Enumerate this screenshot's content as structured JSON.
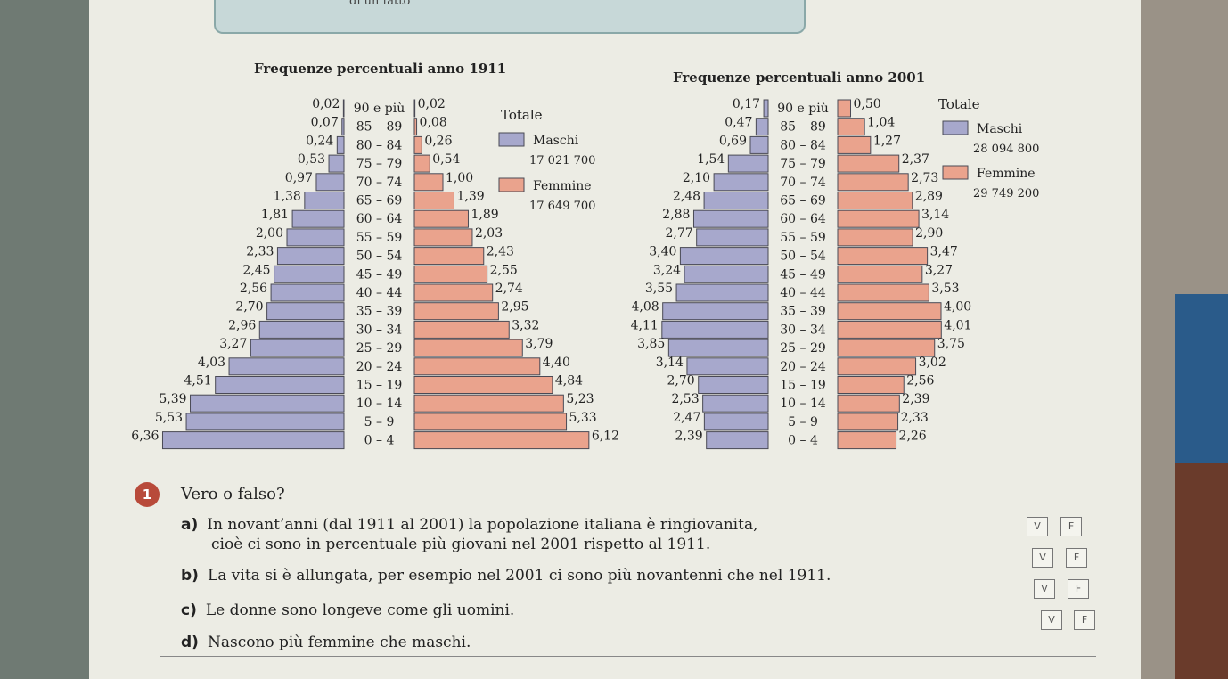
{
  "header": {
    "label": "di un fatto"
  },
  "colors": {
    "male": "#a7a8cc",
    "female": "#eaa38d",
    "edge": "#4a4a55"
  },
  "chart_data": [
    {
      "type": "bar",
      "title": "Frequenze percentuali anno 1911",
      "orientation": "population-pyramid",
      "categories": [
        "90 e più",
        "85 - 89",
        "80 - 84",
        "75 - 79",
        "70 - 74",
        "65 - 69",
        "60 - 64",
        "55 - 59",
        "50 - 54",
        "45 - 49",
        "40 - 44",
        "35 - 39",
        "30 - 34",
        "25 - 29",
        "20 - 24",
        "15 - 19",
        "10 - 14",
        "5 - 9",
        "0 - 4"
      ],
      "category_labels": [
        "90 e più",
        "85 – 89",
        "80 – 84",
        "75 – 79",
        "70 – 74",
        "65 – 69",
        "60 – 64",
        "55 – 59",
        "50 – 54",
        "45 – 49",
        "40 – 44",
        "35 – 39",
        "30 – 34",
        "25 – 29",
        "20 – 24",
        "15 – 19",
        "10 – 14",
        "5 – 9",
        "0 – 4"
      ],
      "series": [
        {
          "name": "Maschi",
          "values": [
            0.02,
            0.07,
            0.24,
            0.53,
            0.97,
            1.38,
            1.81,
            2.0,
            2.33,
            2.45,
            2.56,
            2.7,
            2.96,
            3.27,
            4.03,
            4.51,
            5.39,
            5.53,
            6.36
          ]
        },
        {
          "name": "Femmine",
          "values": [
            0.02,
            0.08,
            0.26,
            0.54,
            1.0,
            1.39,
            1.89,
            2.03,
            2.43,
            2.55,
            2.74,
            2.95,
            3.32,
            3.79,
            4.4,
            4.84,
            5.23,
            5.33,
            6.12
          ]
        }
      ],
      "labels_male": [
        "0,02",
        "0,07",
        "0,24",
        "0,53",
        "0,97",
        "1,38",
        "1,81",
        "2,00",
        "2,33",
        "2,45",
        "2,56",
        "2,70",
        "2,96",
        "3,27",
        "4,03",
        "4,51",
        "5,39",
        "5,53",
        "6,36"
      ],
      "labels_female": [
        "0,02",
        "0,08",
        "0,26",
        "0,54",
        "1,00",
        "1,39",
        "1,89",
        "2,03",
        "2,43",
        "2,55",
        "2,74",
        "2,95",
        "3,32",
        "3,79",
        "4,40",
        "4,84",
        "5,23",
        "5,33",
        "6,12"
      ],
      "legend": {
        "title": "Totale",
        "male_label": "Maschi",
        "male_total": "17 021 700",
        "female_label": "Femmine",
        "female_total": "17 649 700"
      }
    },
    {
      "type": "bar",
      "title": "Frequenze percentuali anno 2001",
      "orientation": "population-pyramid",
      "categories": [
        "90 e più",
        "85 - 89",
        "80 - 84",
        "75 - 79",
        "70 - 74",
        "65 - 69",
        "60 - 64",
        "55 - 59",
        "50 - 54",
        "45 - 49",
        "40 - 44",
        "35 - 39",
        "30 - 34",
        "25 - 29",
        "20 - 24",
        "15 - 19",
        "10 - 14",
        "5 - 9",
        "0 - 4"
      ],
      "category_labels": [
        "90 e più",
        "85 – 89",
        "80 – 84",
        "75 – 79",
        "70 – 74",
        "65 – 69",
        "60 – 64",
        "55 – 59",
        "50 – 54",
        "45 – 49",
        "40 – 44",
        "35 – 39",
        "30 – 34",
        "25 – 29",
        "20 – 24",
        "15 – 19",
        "10 – 14",
        "5 – 9",
        "0 – 4"
      ],
      "series": [
        {
          "name": "Maschi",
          "values": [
            0.17,
            0.47,
            0.69,
            1.54,
            2.1,
            2.48,
            2.88,
            2.77,
            3.4,
            3.24,
            3.55,
            4.08,
            4.11,
            3.85,
            3.14,
            2.7,
            2.53,
            2.47,
            2.39
          ]
        },
        {
          "name": "Femmine",
          "values": [
            0.5,
            1.04,
            1.27,
            2.37,
            2.73,
            2.89,
            3.14,
            2.9,
            3.47,
            3.27,
            3.53,
            4.0,
            4.01,
            3.75,
            3.02,
            2.56,
            2.39,
            2.33,
            2.26
          ]
        }
      ],
      "labels_male": [
        "0,17",
        "0,47",
        "0,69",
        "1,54",
        "2,10",
        "2,48",
        "2,88",
        "2,77",
        "3,40",
        "3,24",
        "3,55",
        "4,08",
        "4,11",
        "3,85",
        "3,14",
        "2,70",
        "2,53",
        "2,47",
        "2,39"
      ],
      "labels_female": [
        "0,50",
        "1,04",
        "1,27",
        "2,37",
        "2,73",
        "2,89",
        "3,14",
        "2,90",
        "3,47",
        "3,27",
        "3,53",
        "4,00",
        "4,01",
        "3,75",
        "3,02",
        "2,56",
        "2,39",
        "2,33",
        "2,26"
      ],
      "legend": {
        "title": "Totale",
        "male_label": "Maschi",
        "male_total": "28 094 800",
        "female_label": "Femmine",
        "female_total": "29 749 200"
      }
    }
  ],
  "exercise": {
    "number": "1",
    "heading": "Vero o falso?",
    "true_label": "V",
    "false_label": "F",
    "items": [
      {
        "letter": "a)",
        "line1": "In novant’anni (dal 1911 al 2001) la popolazione italiana è ringiovanita,",
        "line2": "cioè ci sono in percentuale più giovani nel 2001 rispetto al 1911."
      },
      {
        "letter": "b)",
        "line1": "La vita si è allungata, per esempio nel 2001 ci sono più novantenni che nel 1911."
      },
      {
        "letter": "c)",
        "line1": "Le donne sono longeve come gli uomini."
      },
      {
        "letter": "d)",
        "line1": "Nascono più femmine che maschi."
      }
    ]
  }
}
